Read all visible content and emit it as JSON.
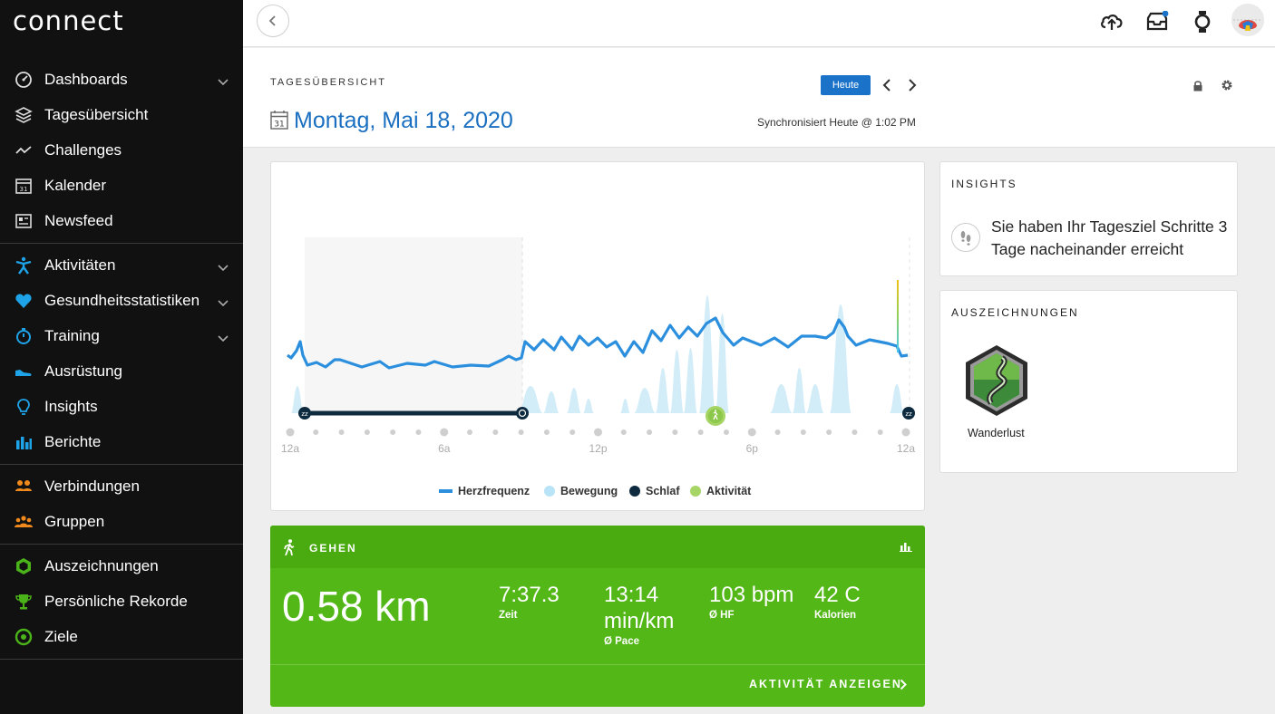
{
  "app": {
    "logo": "connect"
  },
  "sidebar": {
    "groups": [
      {
        "items": [
          {
            "label": "Dashboards",
            "icon": "gauge-icon",
            "expandable": true
          },
          {
            "label": "Tagesübersicht",
            "icon": "layers-icon",
            "expandable": false
          },
          {
            "label": "Challenges",
            "icon": "challenges-icon",
            "expandable": false
          },
          {
            "label": "Kalender",
            "icon": "calendar-icon",
            "expandable": false
          },
          {
            "label": "Newsfeed",
            "icon": "newsfeed-icon",
            "expandable": false
          }
        ]
      },
      {
        "items": [
          {
            "label": "Aktivitäten",
            "icon": "person-activity-icon",
            "expandable": true
          },
          {
            "label": "Gesundheitsstatistiken",
            "icon": "heart-icon",
            "expandable": true
          },
          {
            "label": "Training",
            "icon": "stopwatch-icon",
            "expandable": true
          },
          {
            "label": "Ausrüstung",
            "icon": "shoe-icon",
            "expandable": false
          },
          {
            "label": "Insights",
            "icon": "lightbulb-icon",
            "expandable": false
          },
          {
            "label": "Berichte",
            "icon": "bar-chart-icon",
            "expandable": false
          }
        ]
      },
      {
        "items": [
          {
            "label": "Verbindungen",
            "icon": "connections-icon",
            "expandable": false
          },
          {
            "label": "Gruppen",
            "icon": "groups-icon",
            "expandable": false
          }
        ]
      },
      {
        "items": [
          {
            "label": "Auszeichnungen",
            "icon": "badge-hexagon-icon",
            "expandable": false
          },
          {
            "label": "Persönliche Rekorde",
            "icon": "trophy-icon",
            "expandable": false
          },
          {
            "label": "Ziele",
            "icon": "target-icon",
            "expandable": false
          }
        ]
      }
    ]
  },
  "header": {
    "eyebrow": "TAGESÜBERSICHT",
    "today_button": "Heute",
    "date_title": "Montag, Mai 18, 2020",
    "sync_status": "Synchronisiert Heute @ 1:02 PM",
    "calendar_day": "31"
  },
  "chart_data": {
    "type": "line",
    "x_ticks": [
      "12a",
      "6a",
      "12p",
      "6p",
      "12a"
    ],
    "x_range_hours": [
      0,
      24
    ],
    "sleep_window_hours": [
      0.6,
      9.0
    ],
    "activity_marker_hour": 16.5,
    "series": [
      {
        "name": "Herzfrequenz",
        "color": "#2b8fde"
      },
      {
        "name": "Bewegung",
        "color": "#b9e3f6"
      },
      {
        "name": "Schlaf",
        "color": "#0d2a3f"
      },
      {
        "name": "Aktivität",
        "color": "#a6d566"
      }
    ],
    "grid": false,
    "legend_position": "bottom"
  },
  "insights": {
    "title": "INSIGHTS",
    "text": "Sie haben Ihr Tagesziel Schritte 3 Tage nacheinander erreicht"
  },
  "badges": {
    "title": "AUSZEICHNUNGEN",
    "items": [
      {
        "label": "Wanderlust"
      }
    ]
  },
  "activity": {
    "type": "GEHEN",
    "distance": "0.58 km",
    "stats": [
      {
        "value": "7:37.3",
        "label": "Zeit"
      },
      {
        "value": "13:14\nmin/km",
        "label": "Ø Pace"
      },
      {
        "value": "103 bpm",
        "label": "Ø HF"
      },
      {
        "value": "42 C",
        "label": "Kalorien"
      }
    ],
    "link_label": "AKTIVITÄT ANZEIGEN",
    "colors": {
      "accent": "#53b718"
    }
  }
}
